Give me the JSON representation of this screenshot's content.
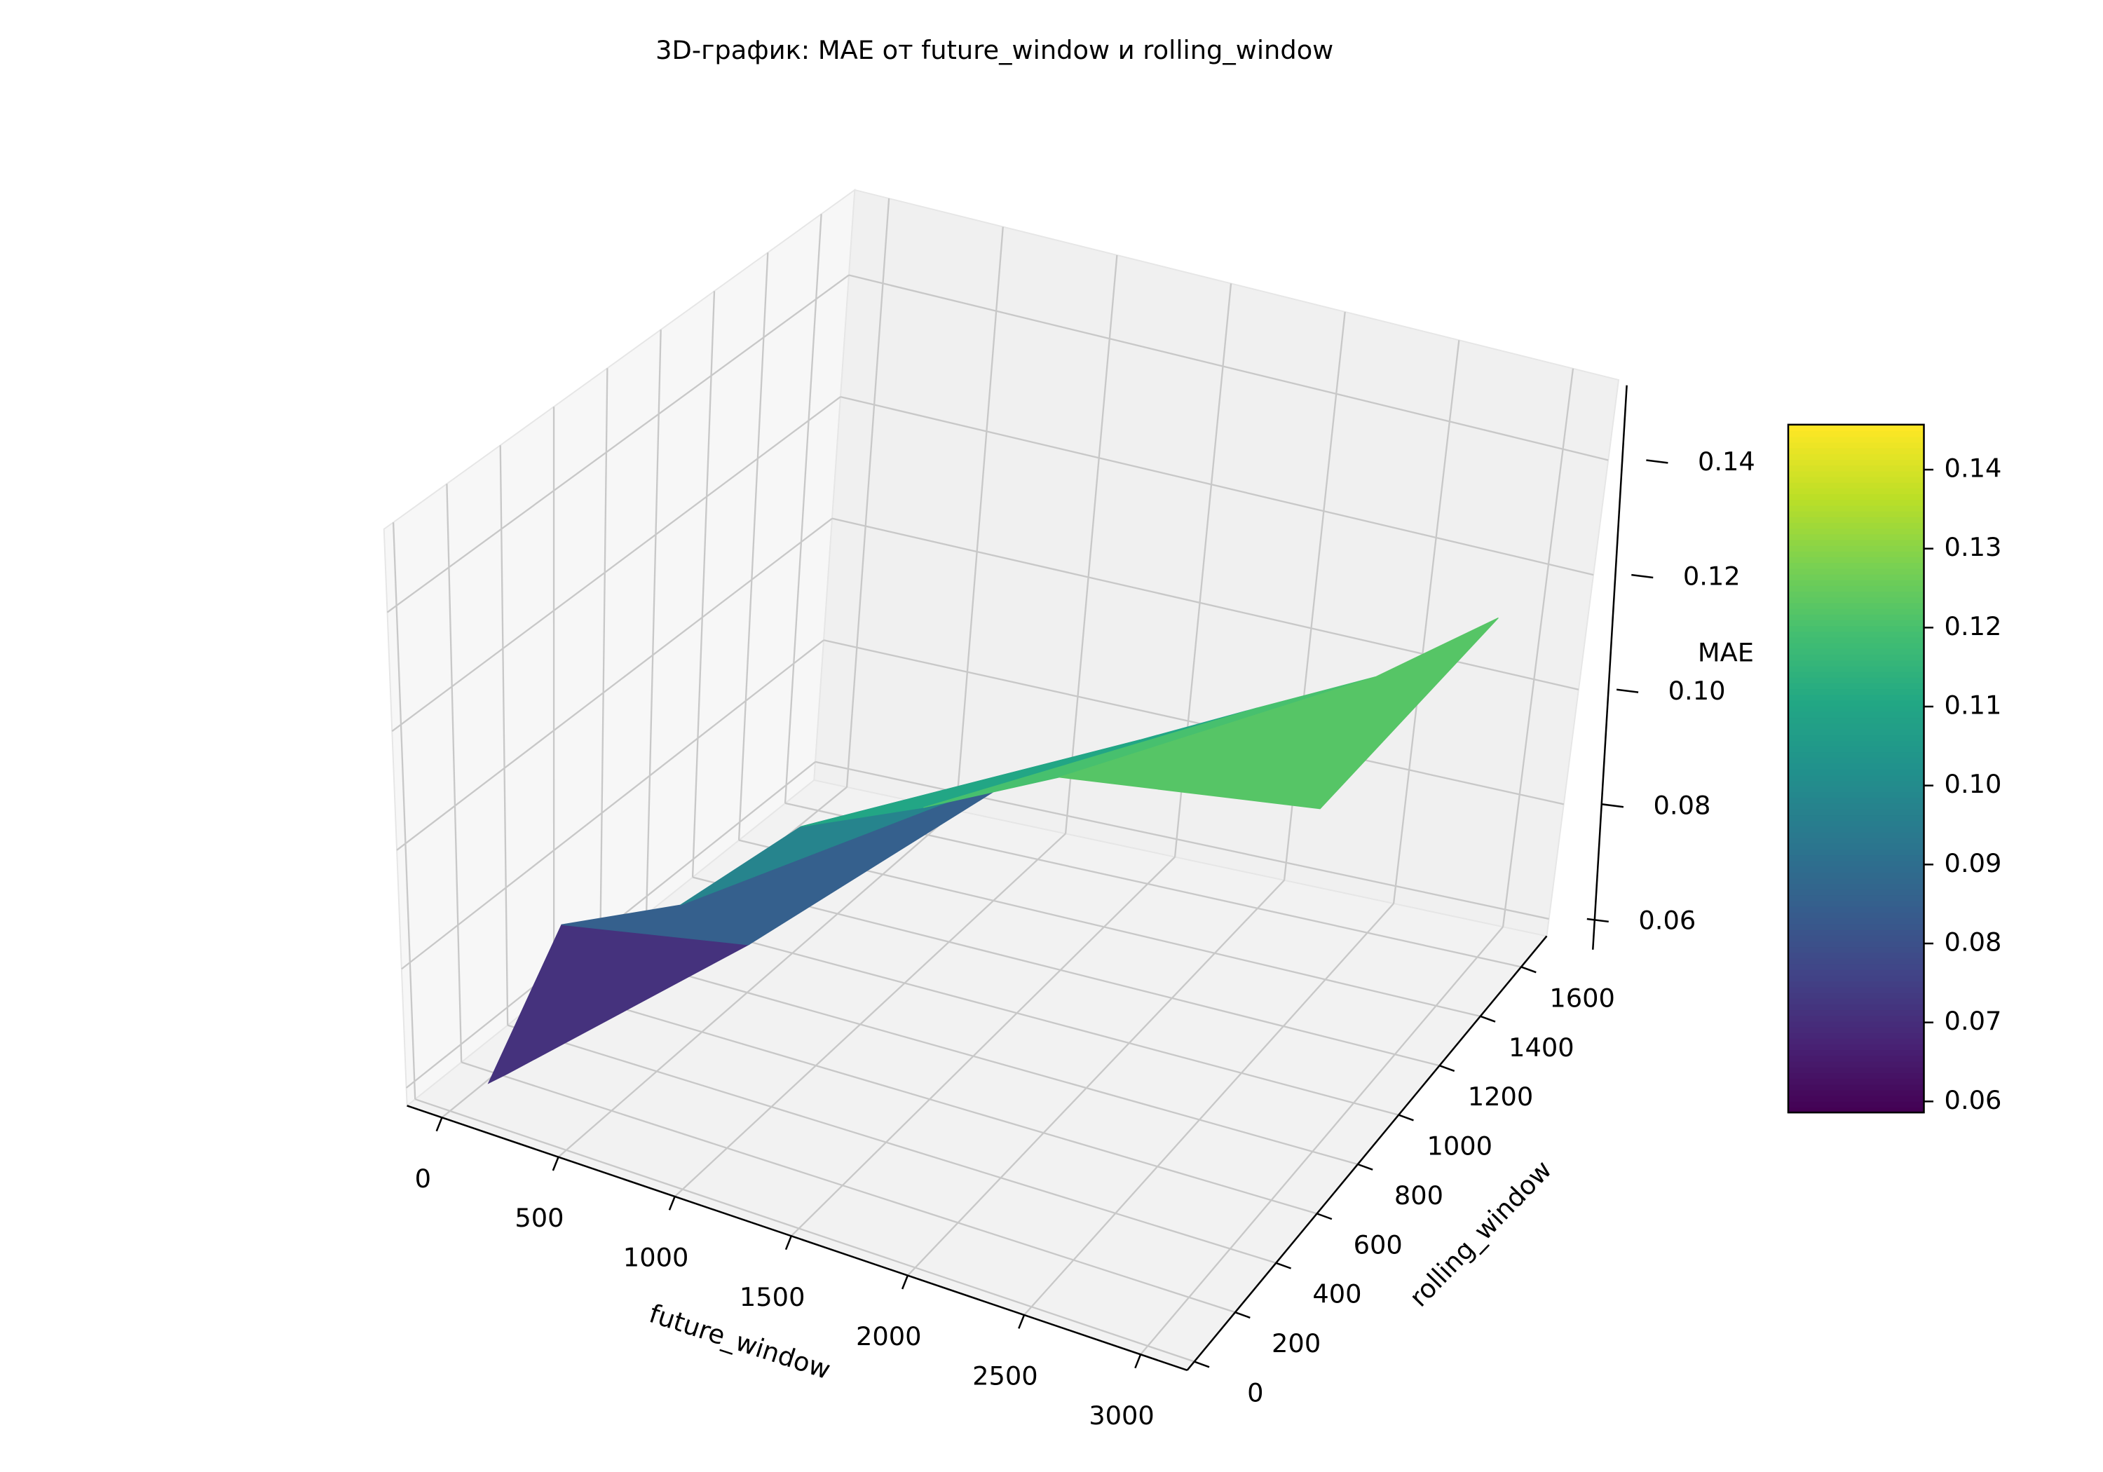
{
  "chart_data": {
    "type": "surface3d",
    "title": "3D-график: MAE от future_window и rolling_window",
    "x_label": "future_window",
    "y_label": "rolling_window",
    "z_label": "MAE",
    "rows": [
      {
        "x": [
          150,
          500,
          1000,
          1500,
          2000,
          2500,
          3000
        ],
        "y": [
          20,
          0,
          0,
          0,
          0,
          50,
          700
        ],
        "z": [
          0.063,
          0.095,
          0.105,
          0.125,
          0.135,
          0.145,
          0.12
        ]
      },
      {
        "x": [
          150,
          500,
          1000,
          1500,
          2000,
          2500,
          3000
        ],
        "y": [
          100,
          800,
          1500,
          1500,
          1500,
          1500,
          1500
        ],
        "z": [
          0.062,
          0.065,
          0.075,
          0.085,
          0.095,
          0.105,
          0.12
        ]
      }
    ],
    "xlim": [
      -150,
      3200
    ],
    "ylim": [
      -35,
      1725
    ],
    "zlim": [
      0.057,
      0.154
    ],
    "xticks": [
      0,
      500,
      1000,
      1500,
      2000,
      2500,
      3000
    ],
    "yticks": [
      0,
      200,
      400,
      600,
      800,
      1000,
      1200,
      1400,
      1600
    ],
    "zticks": [
      0.06,
      0.08,
      {
        "value": 0.1,
        "label": "0.10"
      },
      0.12,
      0.14
    ],
    "colormap": "viridis",
    "colorbar": {
      "lim": [
        0.0586,
        0.1457
      ],
      "ticks": [
        0.06,
        0.07,
        0.08,
        0.09,
        {
          "value": 0.1,
          "label": "0.10"
        },
        0.11,
        0.12,
        0.13,
        0.14
      ]
    },
    "grid": true
  }
}
